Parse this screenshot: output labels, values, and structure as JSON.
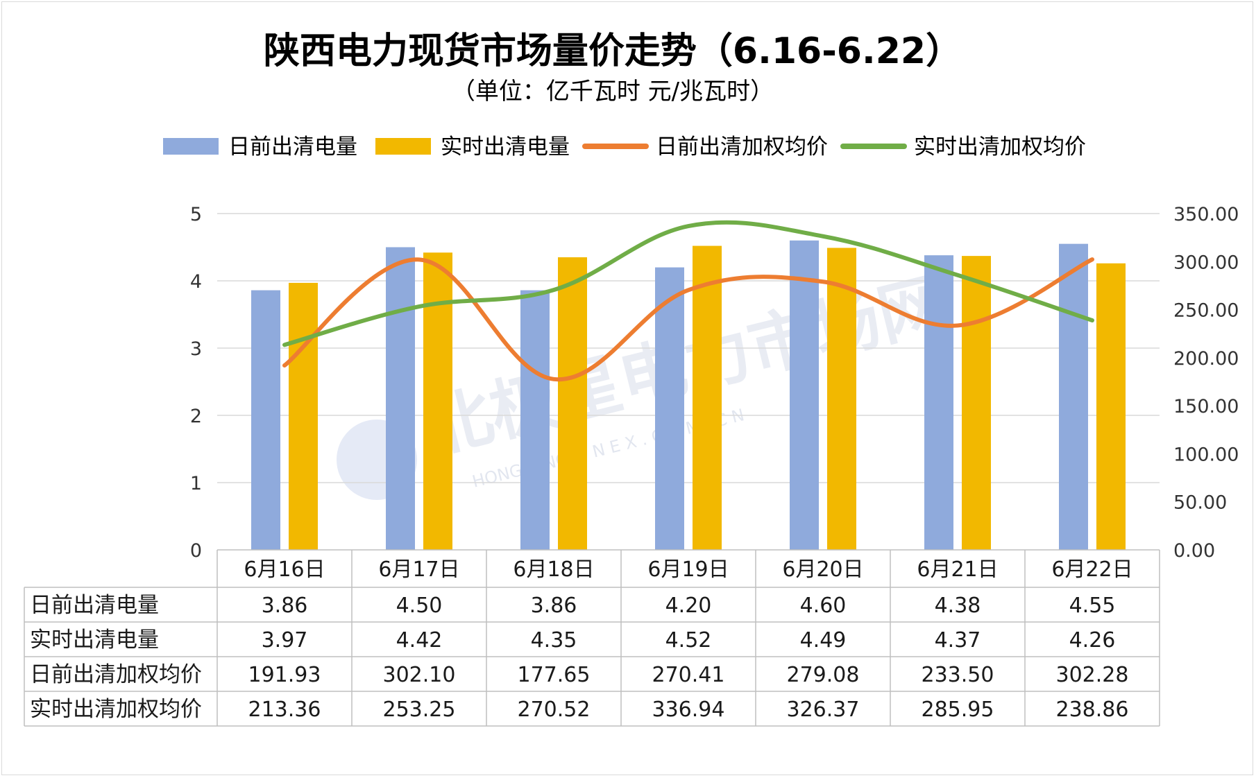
{
  "chart_data": {
    "type": "bar",
    "title": "陕西电力现货市场量价走势（6.16-6.22）",
    "subtitle": "（单位：亿千瓦时 元/兆瓦时）",
    "categories": [
      "6月16日",
      "6月17日",
      "6月18日",
      "6月19日",
      "6月20日",
      "6月21日",
      "6月22日"
    ],
    "legend_position": "top",
    "grid": true,
    "y_left": {
      "min": 0,
      "max": 5,
      "ticks": [
        "0",
        "1",
        "2",
        "3",
        "4",
        "5"
      ]
    },
    "y_right": {
      "min": 0,
      "max": 350,
      "ticks": [
        "0.00",
        "50.00",
        "100.00",
        "150.00",
        "200.00",
        "250.00",
        "300.00",
        "350.00"
      ]
    },
    "series": [
      {
        "name": "日前出清电量",
        "kind": "bar",
        "axis": "left",
        "color": "#8faadc",
        "values": [
          3.86,
          4.5,
          3.86,
          4.2,
          4.6,
          4.38,
          4.55
        ],
        "labels": [
          "3.86",
          "4.50",
          "3.86",
          "4.20",
          "4.60",
          "4.38",
          "4.55"
        ]
      },
      {
        "name": "实时出清电量",
        "kind": "bar",
        "axis": "left",
        "color": "#f2b800",
        "values": [
          3.97,
          4.42,
          4.35,
          4.52,
          4.49,
          4.37,
          4.26
        ],
        "labels": [
          "3.97",
          "4.42",
          "4.35",
          "4.52",
          "4.49",
          "4.37",
          "4.26"
        ]
      },
      {
        "name": "日前出清加权均价",
        "kind": "line",
        "axis": "right",
        "color": "#ed7d31",
        "values": [
          191.93,
          302.1,
          177.65,
          270.41,
          279.08,
          233.5,
          302.28
        ],
        "labels": [
          "191.93",
          "302.10",
          "177.65",
          "270.41",
          "279.08",
          "233.50",
          "302.28"
        ]
      },
      {
        "name": "实时出清加权均价",
        "kind": "line",
        "axis": "right",
        "color": "#70ad47",
        "values": [
          213.36,
          253.25,
          270.52,
          336.94,
          326.37,
          285.95,
          238.86
        ],
        "labels": [
          "213.36",
          "253.25",
          "270.52",
          "336.94",
          "326.37",
          "285.95",
          "238.86"
        ]
      }
    ]
  },
  "watermark": {
    "text": "北极星电力市场网",
    "subtext": "HONGRANCE · N E X . C O M . C N"
  }
}
